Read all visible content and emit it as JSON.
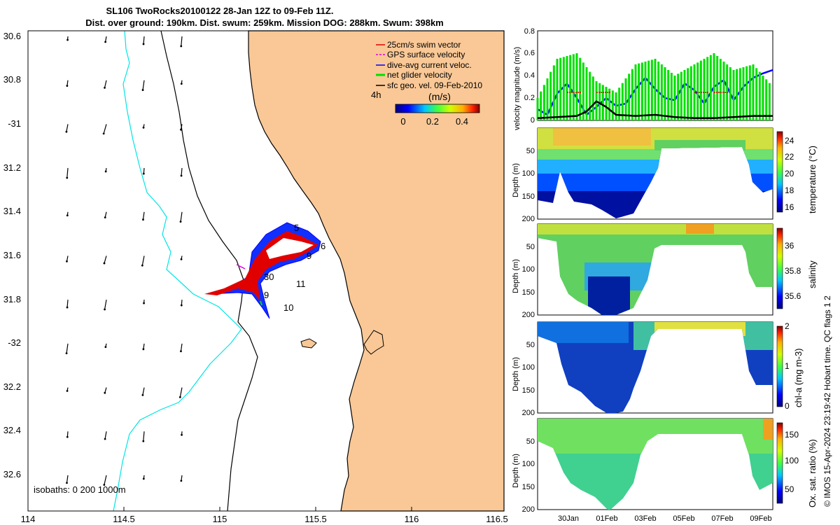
{
  "header": {
    "line1": "SL106 TwoRocks20100122 28-Jan 12Z to 09-Feb 11Z.",
    "line2": "Dist. over ground: 190km. Dist. swum: 259km. Mission DOG: 288km. Swum: 398km"
  },
  "map": {
    "lon_ticks": [
      "114",
      "114.5",
      "115",
      "115.5",
      "116",
      "116.5"
    ],
    "lat_ticks": [
      "30.6",
      "30.8",
      "-31",
      "31.2",
      "31.4",
      "31.6",
      "31.8",
      "-32",
      "32.2",
      "32.4",
      "32.6"
    ],
    "legend": [
      {
        "label": "25cm/s swim vector",
        "color": "#e00000"
      },
      {
        "label": "GPS surface velocity",
        "color": "#e000e0"
      },
      {
        "label": "dive-avg current veloc.",
        "color": "#0000ff"
      },
      {
        "label": "net glider velocity",
        "color": "#00e000"
      },
      {
        "label": "sfc geo. vel. 09-Feb-2010",
        "color": "#000000"
      }
    ],
    "duration_label": "4h",
    "colorbar": {
      "label": "(m/s)",
      "ticks": [
        "0",
        "0.2",
        "0.4"
      ]
    },
    "isobath_note": "isobaths: 0   200  1000m",
    "track_day_labels": [
      "5",
      "6",
      "9",
      "30",
      "11",
      "9",
      "10"
    ],
    "colors": {
      "land": "#f9c896",
      "shelf_isobath": "#000000",
      "deep_isobath": "#00e5e5"
    }
  },
  "chart_data": [
    {
      "type": "line",
      "title": "",
      "ylabel": "velocity magnitude (m/s)",
      "ylim": [
        0,
        0.8
      ],
      "y_ticks": [
        "0",
        "0.2",
        "0.4",
        "0.6",
        "0.8"
      ],
      "xlim": [
        0,
        12
      ],
      "series": [
        {
          "name": "dive-avg current veloc.",
          "color": "#0000ff",
          "x": [
            0,
            0.5,
            1,
            1.5,
            2,
            2.5,
            3,
            3.5,
            4,
            4.5,
            5,
            5.5,
            6,
            6.5,
            7,
            7.5,
            8,
            8.5,
            9,
            9.5,
            10,
            10.5,
            11,
            11.5,
            12
          ],
          "values": [
            0.1,
            0.05,
            0.24,
            0.33,
            0.2,
            0.05,
            0.12,
            0.2,
            0.13,
            0.15,
            0.28,
            0.38,
            0.28,
            0.2,
            0.18,
            0.33,
            0.27,
            0.15,
            0.3,
            0.36,
            0.18,
            0.3,
            0.38,
            0.42,
            0.45
          ]
        },
        {
          "name": "net glider velocity",
          "color": "#00e000",
          "x": [
            0,
            1,
            2,
            3,
            4,
            5,
            6,
            7,
            8,
            9,
            10,
            11,
            12
          ],
          "values": [
            0.2,
            0.55,
            0.6,
            0.35,
            0.25,
            0.5,
            0.55,
            0.4,
            0.5,
            0.6,
            0.45,
            0.5,
            0.3
          ]
        },
        {
          "name": "sfc geo. vel. 09-Feb-2010",
          "color": "#000000",
          "x": [
            0,
            1,
            2,
            2.5,
            3,
            3.5,
            4,
            5,
            6,
            7,
            8,
            9,
            10,
            11,
            12
          ],
          "values": [
            0.02,
            0.03,
            0.04,
            0.08,
            0.17,
            0.12,
            0.05,
            0.04,
            0.05,
            0.03,
            0.02,
            0.02,
            0.03,
            0.04,
            0.04
          ]
        },
        {
          "name": "25cm/s swim vector",
          "color": "#e00000",
          "x": [
            1.5,
            3,
            8,
            9
          ],
          "values": [
            0.25,
            0.25,
            0.25,
            0.25
          ]
        }
      ]
    },
    {
      "type": "heatmap",
      "ylabel": "Depth (m)",
      "y_ticks": [
        "50",
        "100",
        "150",
        "200"
      ],
      "ylim": [
        0,
        200
      ],
      "colorbar_label": "temperature (°C)",
      "colorbar_ticks": [
        "16",
        "18",
        "20",
        "22",
        "24"
      ],
      "crange": [
        15,
        25
      ]
    },
    {
      "type": "heatmap",
      "ylabel": "Depth (m)",
      "y_ticks": [
        "50",
        "100",
        "150",
        "200"
      ],
      "ylim": [
        0,
        200
      ],
      "colorbar_label": "salinity",
      "colorbar_ticks": [
        "35.6",
        "35.8",
        "36"
      ],
      "crange": [
        35.5,
        36.2
      ]
    },
    {
      "type": "heatmap",
      "ylabel": "Depth (m)",
      "y_ticks": [
        "50",
        "100",
        "150",
        "200"
      ],
      "ylim": [
        0,
        200
      ],
      "colorbar_label": "chl-a (mg m-3)",
      "colorbar_ticks": [
        "0",
        "1",
        "2"
      ],
      "crange": [
        0,
        2
      ]
    },
    {
      "type": "heatmap",
      "ylabel": "Depth (m)",
      "y_ticks": [
        "50",
        "100",
        "150",
        "200"
      ],
      "ylim": [
        0,
        200
      ],
      "colorbar_label": "Ox. sat. ratio (%)",
      "colorbar_ticks": [
        "50",
        "100",
        "150"
      ],
      "crange": [
        30,
        170
      ],
      "x_ticks": [
        "30Jan",
        "01Feb",
        "03Feb",
        "05Feb",
        "07Feb",
        "09Feb"
      ]
    }
  ],
  "credit": "© IMOS 15-Apr-2024 23:19:42 Hobart time. QC flags 1  2"
}
